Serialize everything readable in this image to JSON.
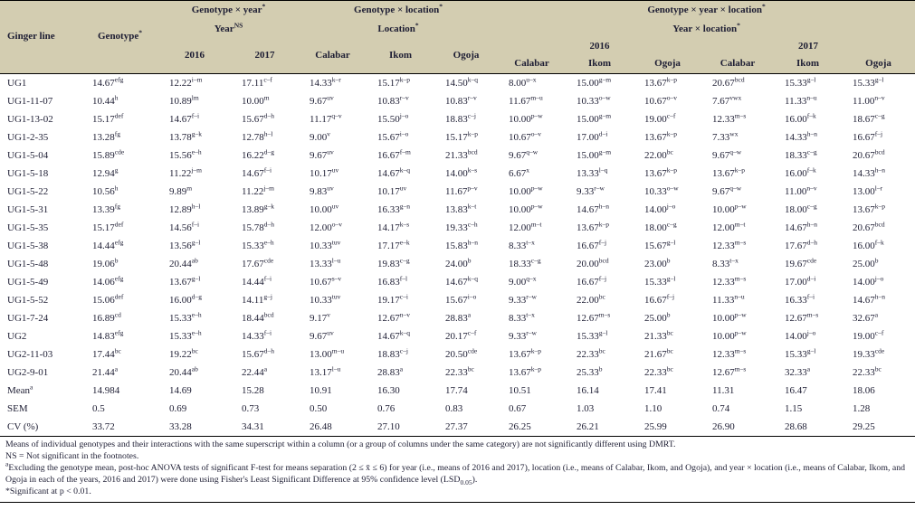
{
  "table": {
    "header": {
      "ginger_line": "Ginger line",
      "genotype": "Genotype^{*}",
      "group_year": {
        "title": "Genotype × year^{*}",
        "sub": "Year^{NS}",
        "cols": [
          "2016",
          "2017"
        ]
      },
      "group_location": {
        "title": "Genotype × location^{*}",
        "sub": "Location^{*}",
        "cols": [
          "Calabar",
          "Ikom",
          "Ogoja"
        ]
      },
      "group_year_location": {
        "title": "Genotype × year × location^{*}",
        "sub": "Year × location^{*}",
        "year_2016": "2016",
        "year_2017": "2017",
        "cols": [
          "Calabar",
          "Ikom",
          "Ogoja",
          "Calabar",
          "Ikom",
          "Ogoja"
        ]
      }
    },
    "rows": [
      {
        "label": "UG1",
        "cells": [
          "14.67^{efg}",
          "12.22^{i–m}",
          "17.11^{c–f}",
          "14.33^{k–r}",
          "15.17^{k–p}",
          "14.50^{k–q}",
          "8.00^{u–x}",
          "15.00^{g–m}",
          "13.67^{k–p}",
          "20.67^{bcd}",
          "15.33^{g–l}",
          "15.33^{g–l}"
        ]
      },
      {
        "label": "UG1-11-07",
        "cells": [
          "10.44^{h}",
          "10.89^{lm}",
          "10.00^{m}",
          "9.67^{uv}",
          "10.83^{r–v}",
          "10.83^{r–v}",
          "11.67^{m–u}",
          "10.33^{o–w}",
          "10.67^{o–v}",
          "7.67^{vwx}",
          "11.33^{n–u}",
          "11.00^{n–v}"
        ]
      },
      {
        "label": "UG1-13-02",
        "cells": [
          "15.17^{def}",
          "14.67^{f–i}",
          "15.67^{d–h}",
          "11.17^{q–v}",
          "15.50^{j–o}",
          "18.83^{c–j}",
          "10.00^{p–w}",
          "15.00^{g–m}",
          "19.00^{c–f}",
          "12.33^{m–s}",
          "16.00^{f–k}",
          "18.67^{c–g}"
        ]
      },
      {
        "label": "UG1-2-35",
        "cells": [
          "13.28^{fg}",
          "13.78^{g–k}",
          "12.78^{h–l}",
          "9.00^{v}",
          "15.67^{i–o}",
          "15.17^{k–p}",
          "10.67^{o–v}",
          "17.00^{d–i}",
          "13.67^{k–p}",
          "7.33^{wx}",
          "14.33^{h–n}",
          "16.67^{f–j}"
        ]
      },
      {
        "label": "UG1-5-04",
        "cells": [
          "15.89^{cde}",
          "15.56^{e–h}",
          "16.22^{d–g}",
          "9.67^{uv}",
          "16.67^{f–m}",
          "21.33^{bcd}",
          "9.67^{q–w}",
          "15.00^{g–m}",
          "22.00^{bc}",
          "9.67^{q–w}",
          "18.33^{c–g}",
          "20.67^{bcd}"
        ]
      },
      {
        "label": "UG1-5-18",
        "cells": [
          "12.94^{g}",
          "11.22^{j–m}",
          "14.67^{f–i}",
          "10.17^{uv}",
          "14.67^{k–q}",
          "14.00^{k–s}",
          "6.67^{x}",
          "13.33^{l–q}",
          "13.67^{k–p}",
          "13.67^{k–p}",
          "16.00^{f–k}",
          "14.33^{h–n}"
        ]
      },
      {
        "label": "UG1-5-22",
        "cells": [
          "10.56^{h}",
          "9.89^{m}",
          "11.22^{j–m}",
          "9.83^{uv}",
          "10.17^{uv}",
          "11.67^{p–v}",
          "10.00^{p–w}",
          "9.33^{r–w}",
          "10.33^{o–w}",
          "9.67^{q–w}",
          "11.00^{n–v}",
          "13.00^{l–r}"
        ]
      },
      {
        "label": "UG1-5-31",
        "cells": [
          "13.39^{fg}",
          "12.89^{h–l}",
          "13.89^{g–k}",
          "10.00^{uv}",
          "16.33^{g–n}",
          "13.83^{k–t}",
          "10.00^{p–w}",
          "14.67^{h–n}",
          "14.00^{j–o}",
          "10.00^{p–w}",
          "18.00^{c–g}",
          "13.67^{k–p}"
        ]
      },
      {
        "label": "UG1-5-35",
        "cells": [
          "15.17^{def}",
          "14.56^{f–i}",
          "15.78^{d–h}",
          "12.00^{o–v}",
          "14.17^{k–s}",
          "19.33^{c–h}",
          "12.00^{m–t}",
          "13.67^{k–p}",
          "18.00^{c–g}",
          "12.00^{m–t}",
          "14.67^{h–n}",
          "20.67^{bcd}"
        ]
      },
      {
        "label": "UG1-5-38",
        "cells": [
          "14.44^{efg}",
          "13.56^{g–l}",
          "15.33^{e–h}",
          "10.33^{tuv}",
          "17.17^{e–k}",
          "15.83^{h–n}",
          "8.33^{t–x}",
          "16.67^{f–j}",
          "15.67^{g–l}",
          "12.33^{m–s}",
          "17.67^{d–h}",
          "16.00^{f–k}"
        ]
      },
      {
        "label": "UG1-5-48",
        "cells": [
          "19.06^{b}",
          "20.44^{ab}",
          "17.67^{cde}",
          "13.33^{l–u}",
          "19.83^{c–g}",
          "24.00^{b}",
          "18.33^{c–g}",
          "20.00^{bcd}",
          "23.00^{b}",
          "8.33^{t–x}",
          "19.67^{cde}",
          "25.00^{b}"
        ]
      },
      {
        "label": "UG1-5-49",
        "cells": [
          "14.06^{efg}",
          "13.67^{g–l}",
          "14.44^{f–i}",
          "10.67^{s–v}",
          "16.83^{f–l}",
          "14.67^{k–q}",
          "9.00^{q–x}",
          "16.67^{f–j}",
          "15.33^{g–l}",
          "12.33^{m–s}",
          "17.00^{d–i}",
          "14.00^{j–o}"
        ]
      },
      {
        "label": "UG1-5-52",
        "cells": [
          "15.06^{def}",
          "16.00^{d–g}",
          "14.11^{g–j}",
          "10.33^{tuv}",
          "19.17^{c–i}",
          "15.67^{i–o}",
          "9.33^{r–w}",
          "22.00^{bc}",
          "16.67^{f–j}",
          "11.33^{n–u}",
          "16.33^{f–i}",
          "14.67^{h–n}"
        ]
      },
      {
        "label": "UG1-7-24",
        "cells": [
          "16.89^{cd}",
          "15.33^{e–h}",
          "18.44^{bcd}",
          "9.17^{v}",
          "12.67^{n–v}",
          "28.83^{a}",
          "8.33^{t–x}",
          "12.67^{m–s}",
          "25.00^{b}",
          "10.00^{p–w}",
          "12.67^{m–s}",
          "32.67^{a}"
        ]
      },
      {
        "label": "UG2",
        "cells": [
          "14.83^{efg}",
          "15.33^{e–h}",
          "14.33^{f–i}",
          "9.67^{uv}",
          "14.67^{k–q}",
          "20.17^{c–f}",
          "9.33^{r–w}",
          "15.33^{g–l}",
          "21.33^{bc}",
          "10.00^{p–w}",
          "14.00^{j–o}",
          "19.00^{c–f}"
        ]
      },
      {
        "label": "UG2-11-03",
        "cells": [
          "17.44^{bc}",
          "19.22^{bc}",
          "15.67^{d–h}",
          "13.00^{m–u}",
          "18.83^{c–j}",
          "20.50^{cde}",
          "13.67^{k–p}",
          "22.33^{bc}",
          "21.67^{bc}",
          "12.33^{m–s}",
          "15.33^{g–l}",
          "19.33^{cde}"
        ]
      },
      {
        "label": "UG2-9-01",
        "cells": [
          "21.44^{a}",
          "20.44^{ab}",
          "22.44^{a}",
          "13.17^{l–u}",
          "28.83^{a}",
          "22.33^{bc}",
          "13.67^{k–p}",
          "25.33^{b}",
          "22.33^{bc}",
          "12.67^{m–s}",
          "32.33^{a}",
          "22.33^{bc}"
        ]
      },
      {
        "label": "Mean^{a}",
        "cells": [
          "14.984",
          "14.69",
          "15.28",
          "10.91",
          "16.30",
          "17.74",
          "10.51",
          "16.14",
          "17.41",
          "11.31",
          "16.47",
          "18.06"
        ]
      },
      {
        "label": "SEM",
        "cells": [
          "0.5",
          "0.69",
          "0.73",
          "0.50",
          "0.76",
          "0.83",
          "0.67",
          "1.03",
          "1.10",
          "0.74",
          "1.15",
          "1.28"
        ]
      },
      {
        "label": "CV (%)",
        "cells": [
          "33.72",
          "33.28",
          "34.31",
          "26.48",
          "27.10",
          "27.37",
          "26.25",
          "26.21",
          "25.99",
          "26.90",
          "28.68",
          "29.25"
        ]
      }
    ]
  },
  "footnotes": [
    "Means of individual genotypes and their interactions with the same superscript within a column (or a group of columns under the same category) are not significantly different using DMRT.",
    "NS = Not significant in the footnotes.",
    "^{a}Excluding the genotype mean, post-hoc ANOVA tests of significant F-test for means separation (2 ≤ x̄ ≤ 6) for year (i.e., means of 2016 and 2017), location (i.e., means of Calabar, Ikom, and Ogoja), and year × location (i.e., means of Calabar, Ikom, and Ogoja in each of the years, 2016 and 2017) were done using Fisher's Least Significant Difference at 95% confidence level (LSD_{0.05}).",
    "*Significant at p < 0.01."
  ],
  "colors": {
    "header_background": "#d3cdb1",
    "text": "#1d1d33",
    "rule": "#000000"
  }
}
